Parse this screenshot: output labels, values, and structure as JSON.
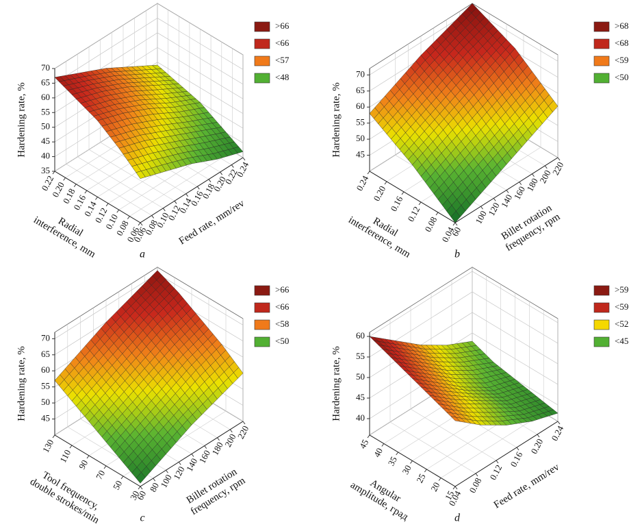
{
  "chart_data": [
    {
      "type": "surface3d",
      "panel": "a",
      "zlabel": "Hardening rate, %",
      "xlabel": [
        "Feed rate, mm/rev"
      ],
      "ylabel": [
        "Radial",
        "interference, mm"
      ],
      "xlim": [
        0.06,
        0.24
      ],
      "ylim": [
        0.06,
        0.22
      ],
      "zlim": [
        35,
        70
      ],
      "xticks": [
        0.06,
        0.08,
        {
          "value": 0.1,
          "label": "0.10"
        },
        0.12,
        0.14,
        0.16,
        0.18,
        {
          "value": 0.2,
          "label": "0.20"
        },
        0.22,
        0.24
      ],
      "yticks": [
        0.06,
        0.08,
        {
          "value": 0.1,
          "label": "0.10"
        },
        0.12,
        0.14,
        0.16,
        0.18,
        {
          "value": 0.2,
          "label": "0.20"
        },
        0.22
      ],
      "zticks": [
        35,
        40,
        45,
        50,
        55,
        60,
        65,
        70
      ],
      "x": [
        0.06,
        0.105,
        0.15,
        0.195,
        0.24
      ],
      "y": [
        0.06,
        0.1,
        0.14,
        0.18,
        0.22
      ],
      "z": [
        [
          50,
          47,
          44,
          40,
          37
        ],
        [
          56,
          53,
          49,
          45,
          41
        ],
        [
          61,
          58,
          54,
          49,
          45
        ],
        [
          64,
          61,
          57,
          52,
          47
        ],
        [
          67,
          63,
          59,
          54,
          49
        ]
      ],
      "legend": [
        {
          "label": ">66",
          "color": "#8b1a12"
        },
        {
          "label": "<66",
          "color": "#c0281c"
        },
        {
          "label": "<57",
          "color": "#f07a1a"
        },
        {
          "label": "<48",
          "color": "#52b033"
        }
      ]
    },
    {
      "type": "surface3d",
      "panel": "b",
      "zlabel": "Hardening rate, %",
      "xlabel": [
        "Billet rotation",
        "frequency, rpm"
      ],
      "ylabel": [
        "Radial",
        "interference, mm"
      ],
      "xlim": [
        60,
        220
      ],
      "ylim": [
        0.04,
        0.24
      ],
      "zlim": [
        40,
        72
      ],
      "xticks": [
        60,
        100,
        120,
        140,
        160,
        180,
        200,
        220
      ],
      "yticks": [
        0.04,
        0.08,
        0.12,
        0.16,
        {
          "value": 0.2,
          "label": "0.20"
        },
        0.24
      ],
      "zticks": [
        45,
        50,
        55,
        60,
        65,
        70
      ],
      "x": [
        60,
        100,
        140,
        180,
        220
      ],
      "y": [
        0.04,
        0.09,
        0.14,
        0.19,
        0.24
      ],
      "z": [
        [
          40,
          44,
          48,
          52,
          56
        ],
        [
          45,
          49,
          53,
          57,
          61
        ],
        [
          50,
          54,
          58,
          62,
          66
        ],
        [
          54,
          58,
          62,
          66,
          69
        ],
        [
          58,
          62,
          66,
          69,
          72
        ]
      ],
      "legend": [
        {
          "label": ">68",
          "color": "#8b1a12"
        },
        {
          "label": "<68",
          "color": "#c0281c"
        },
        {
          "label": "<59",
          "color": "#f07a1a"
        },
        {
          "label": "<50",
          "color": "#52b033"
        }
      ]
    },
    {
      "type": "surface3d",
      "panel": "c",
      "zlabel": "Hardening rate, %",
      "xlabel": [
        "Billet rotation",
        "frequency, rpm"
      ],
      "ylabel": [
        "Tool frequency,",
        "double strokes/min"
      ],
      "xlim": [
        60,
        220
      ],
      "ylim": [
        30,
        130
      ],
      "zlim": [
        40,
        72
      ],
      "xticks": [
        60,
        80,
        100,
        120,
        140,
        160,
        180,
        200,
        220
      ],
      "yticks": [
        30,
        50,
        70,
        90,
        110,
        130
      ],
      "zticks": [
        45,
        50,
        55,
        60,
        65,
        70
      ],
      "x": [
        60,
        100,
        140,
        180,
        220
      ],
      "y": [
        30,
        55,
        80,
        105,
        130
      ],
      "z": [
        [
          41,
          45,
          49,
          52,
          55
        ],
        [
          45,
          49,
          53,
          57,
          60
        ],
        [
          49,
          53,
          57,
          61,
          64
        ],
        [
          53,
          57,
          61,
          65,
          68
        ],
        [
          57,
          61,
          65,
          68,
          71
        ]
      ],
      "legend": [
        {
          "label": ">66",
          "color": "#8b1a12"
        },
        {
          "label": "<66",
          "color": "#c0281c"
        },
        {
          "label": "<58",
          "color": "#f07a1a"
        },
        {
          "label": "<50",
          "color": "#52b033"
        }
      ]
    },
    {
      "type": "surface3d",
      "panel": "d",
      "zlabel": "Hardening rate, %",
      "xlabel": [
        "Feed rate, mm/rev"
      ],
      "ylabel": [
        "Angular",
        "amplitude, град"
      ],
      "xlim": [
        0.04,
        0.24
      ],
      "ylim": [
        15,
        45
      ],
      "zlim": [
        36,
        61
      ],
      "xticks": [
        0.04,
        0.08,
        0.12,
        0.16,
        {
          "value": 0.2,
          "label": "0.20"
        },
        0.24
      ],
      "yticks": [
        15,
        20,
        25,
        30,
        35,
        40,
        45
      ],
      "zticks": [
        40,
        45,
        50,
        55,
        60
      ],
      "x": [
        0.04,
        0.09,
        0.14,
        0.19,
        0.24
      ],
      "y": [
        15,
        22.5,
        30,
        37.5,
        45
      ],
      "z": [
        [
          52,
          47,
          43,
          40,
          38
        ],
        [
          54,
          49,
          45,
          41,
          39
        ],
        [
          56,
          51,
          46,
          42,
          40
        ],
        [
          58,
          53,
          48,
          44,
          41
        ],
        [
          60,
          55,
          50,
          46,
          43
        ]
      ],
      "legend": [
        {
          "label": ">59",
          "color": "#8b1a12"
        },
        {
          "label": "<59",
          "color": "#c0281c"
        },
        {
          "label": "<52",
          "color": "#f5d800"
        },
        {
          "label": "<45",
          "color": "#52b033"
        }
      ]
    }
  ]
}
